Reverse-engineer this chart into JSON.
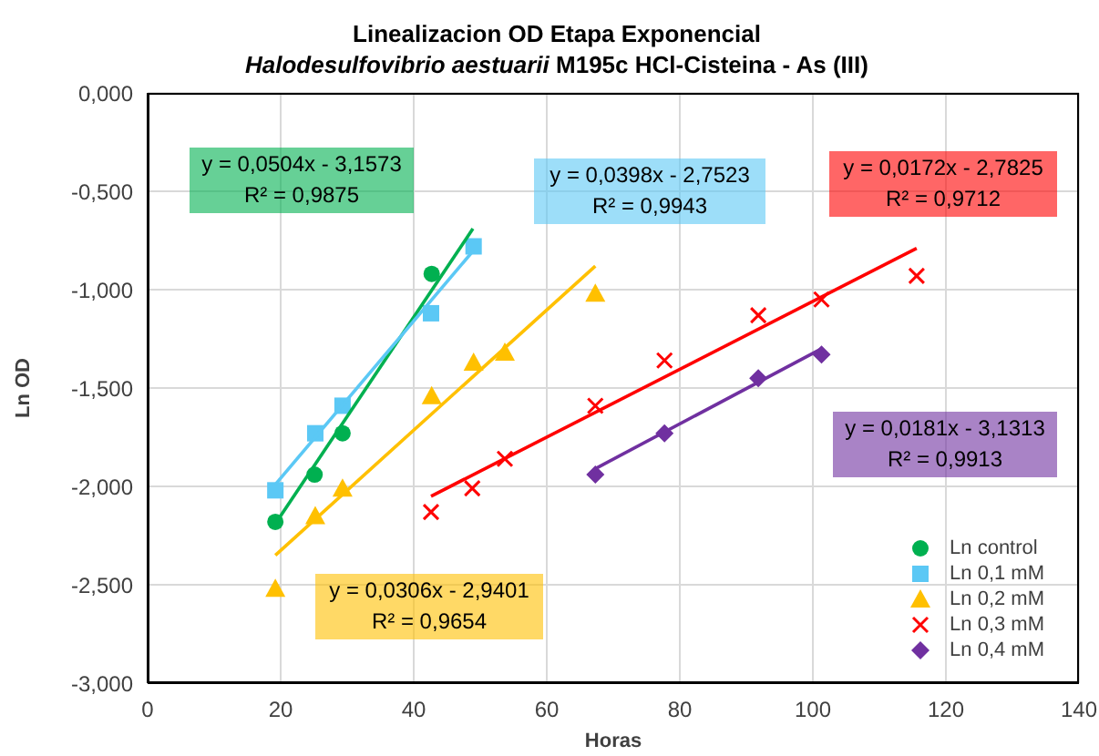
{
  "chart_data": {
    "type": "scatter",
    "title": "Linealizacion OD Etapa Exponencial",
    "subtitle": "Halodesulfovibrio aestuarii M195c HCl-Cisteina - As (III)",
    "xlabel": "Horas",
    "ylabel": "Ln OD",
    "xlim": [
      0,
      140
    ],
    "xticks": [
      0,
      20,
      40,
      60,
      80,
      100,
      120,
      140
    ],
    "ylim": [
      -3,
      0
    ],
    "yticks": [
      {
        "value": -3,
        "label": "-3,000"
      },
      {
        "value": -2.5,
        "label": "-2,500"
      },
      {
        "value": -2,
        "label": "-2,000"
      },
      {
        "value": -1.5,
        "label": "-1,500"
      },
      {
        "value": -1,
        "label": "-1,000"
      },
      {
        "value": -0.5,
        "label": "-0,500"
      },
      {
        "value": 0,
        "label": "0,000"
      }
    ],
    "grid": true,
    "legend": "bottom right",
    "series": [
      {
        "name": "Ln control",
        "color": "#00b050",
        "marker": "circle",
        "x": [
          19.2,
          25.1,
          29.3,
          42.7
        ],
        "values": [
          -2.18,
          -1.94,
          -1.73,
          -0.92
        ]
      },
      {
        "name": "Ln 0,1 mM",
        "color": "#5bc8f5",
        "marker": "square",
        "x": [
          19.2,
          25.2,
          29.3,
          42.6,
          49.0
        ],
        "values": [
          -2.02,
          -1.73,
          -1.59,
          -1.12,
          -0.78
        ]
      },
      {
        "name": "Ln 0,2 mM",
        "color": "#ffc000",
        "marker": "triangle",
        "x": [
          19.2,
          25.2,
          29.3,
          42.7,
          49.0,
          53.7,
          67.3
        ],
        "values": [
          -2.52,
          -2.15,
          -2.01,
          -1.54,
          -1.37,
          -1.32,
          -1.02
        ]
      },
      {
        "name": "Ln 0,3 mM",
        "color": "#ff0000",
        "marker": "cross",
        "x": [
          42.6,
          48.8,
          53.7,
          67.3,
          77.7,
          91.8,
          101.3,
          115.6
        ],
        "values": [
          -2.13,
          -2.01,
          -1.86,
          -1.59,
          -1.36,
          -1.13,
          -1.05,
          -0.93
        ]
      },
      {
        "name": "Ln 0,4 mM",
        "color": "#7030a0",
        "marker": "diamond",
        "x": [
          67.3,
          77.7,
          91.8,
          101.3
        ],
        "values": [
          -1.94,
          -1.73,
          -1.45,
          -1.33
        ]
      },
      {
        "type": "line",
        "color": "#00b050",
        "x": [
          19.2,
          48.9
        ],
        "values": [
          -2.19,
          -0.69
        ]
      },
      {
        "type": "line",
        "color": "#5bc8f5",
        "x": [
          19.2,
          49.0
        ],
        "values": [
          -1.99,
          -0.8
        ]
      },
      {
        "type": "line",
        "color": "#ffc000",
        "x": [
          19.2,
          67.3
        ],
        "values": [
          -2.35,
          -0.88
        ]
      },
      {
        "type": "line",
        "color": "#ff0000",
        "x": [
          42.6,
          115.6
        ],
        "values": [
          -2.05,
          -0.79
        ]
      },
      {
        "type": "line",
        "color": "#7030a0",
        "x": [
          67.3,
          101.3
        ],
        "values": [
          -1.91,
          -1.3
        ]
      }
    ],
    "annotations": [
      "y = 0,0504x - 3,1573\nR² = 0,9875",
      "y = 0,0398x - 2,7523\nR² = 0,9943",
      "y = 0,0306x - 2,9401\nR² = 0,9654",
      "y = 0,0172x - 2,7825\nR² = 0,9712",
      "y = 0,0181x - 3,1313\nR² = 0,9913"
    ]
  }
}
